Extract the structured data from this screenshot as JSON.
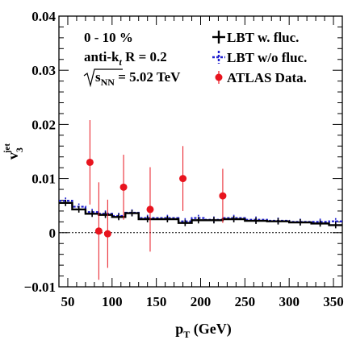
{
  "chart_data": {
    "type": "line",
    "xlabel": {
      "main": "p",
      "sub": "T",
      "rest": " (GeV)"
    },
    "ylabel": {
      "main": "v",
      "sub": "3",
      "sup": "jet"
    },
    "xlim": [
      40,
      360
    ],
    "ylim": [
      -0.01,
      0.04
    ],
    "x_ticks": [
      50,
      100,
      150,
      200,
      250,
      300,
      350
    ],
    "y_ticks": [
      -0.01,
      0,
      0.01,
      0.02,
      0.03,
      0.04
    ],
    "y_tick_labels": [
      "−0.01",
      "0",
      "0.01",
      "0.02",
      "0.03",
      "0.04"
    ],
    "annotations": {
      "centrality": "0 - 10 %",
      "algo_prefix": "anti-k",
      "algo_sub": "t",
      "algo_rest": " R = 0.2",
      "energy_main": "s",
      "energy_sub": "NN",
      "energy_rest": " = 5.02 TeV"
    },
    "legend": {
      "placement": "top-right",
      "entries": [
        "LBT w. fluc.",
        "LBT w/o fluc.",
        "ATLAS Data."
      ]
    },
    "zero_line": true,
    "series": [
      {
        "name": "LBT w. fluc.",
        "kind": "step",
        "color": "#000000",
        "bins": [
          40,
          55,
          70,
          85,
          100,
          115,
          130,
          150,
          175,
          190,
          205,
          225,
          250,
          275,
          300,
          325,
          345,
          360
        ],
        "values": [
          0.0055,
          0.0043,
          0.0035,
          0.0033,
          0.0029,
          0.0036,
          0.0025,
          0.0025,
          0.0018,
          0.0023,
          0.0023,
          0.0025,
          0.0022,
          0.0021,
          0.0019,
          0.0017,
          0.0014
        ]
      },
      {
        "name": "LBT w/o fluc.",
        "kind": "step",
        "color": "#1f1fd0",
        "bins": [
          40,
          55,
          70,
          85,
          100,
          115,
          130,
          150,
          175,
          190,
          205,
          225,
          250,
          275,
          300,
          325,
          345,
          360
        ],
        "values": [
          0.0059,
          0.0048,
          0.0038,
          0.0035,
          0.0031,
          0.0037,
          0.0027,
          0.0027,
          0.0021,
          0.0027,
          0.0024,
          0.0027,
          0.0024,
          0.0022,
          0.002,
          0.002,
          0.0021
        ]
      },
      {
        "name": "ATLAS Data.",
        "kind": "points",
        "color": "#e8141e",
        "x": [
          75,
          85,
          95,
          113,
          143,
          180,
          225
        ],
        "y": [
          0.013,
          0.0003,
          -0.0002,
          0.0084,
          0.0043,
          0.01,
          0.0068
        ],
        "err": [
          0.0078,
          0.009,
          0.0063,
          0.006,
          0.0078,
          0.006,
          0.005
        ]
      }
    ]
  }
}
